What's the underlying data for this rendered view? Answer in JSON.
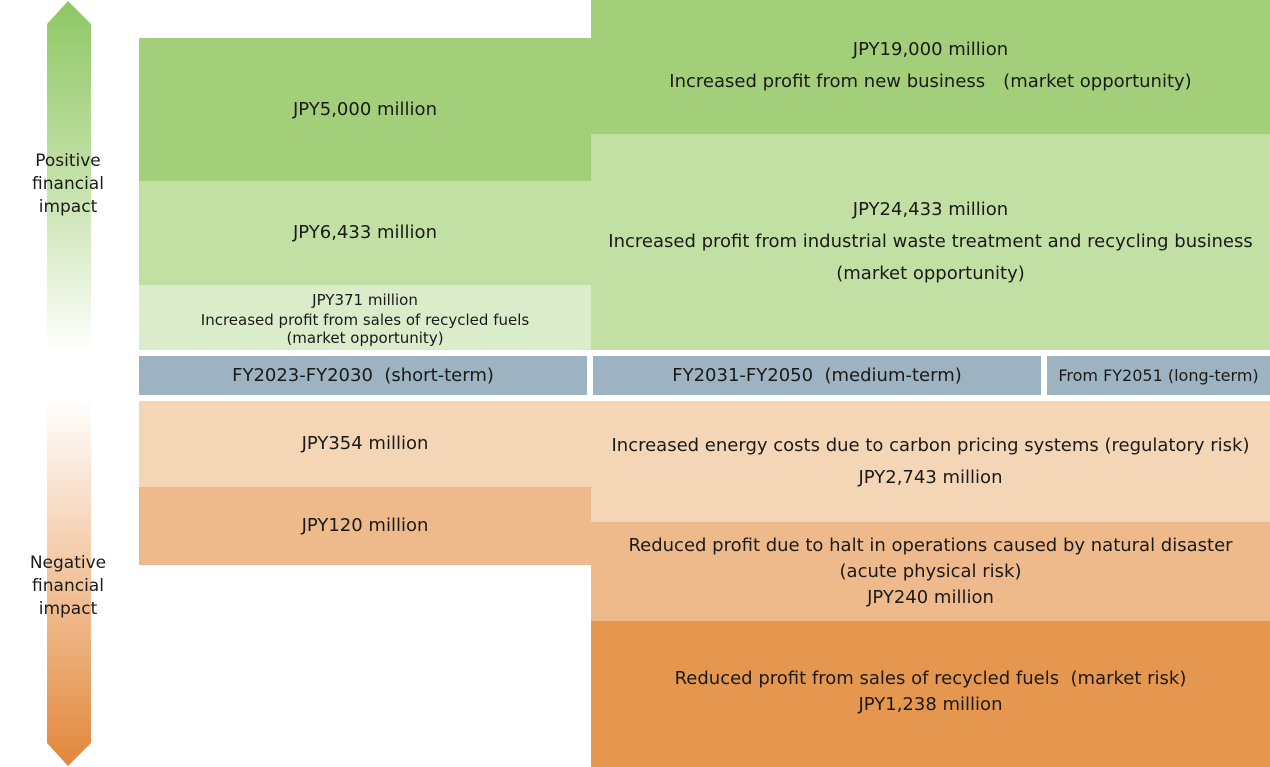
{
  "axis": {
    "positive_label_lines": [
      "Positive",
      "financial",
      "impact"
    ],
    "negative_label_lines": [
      "Negative",
      "financial",
      "impact"
    ]
  },
  "periods": {
    "short": "FY2023-FY2030  (short-term)",
    "medium": "FY2031-FY2050  (medium-term)",
    "long": "From FY2051 (long-term)"
  },
  "positive": {
    "short_new_business": {
      "amount": "JPY5,000 million"
    },
    "short_waste": {
      "amount": "JPY6,433 million"
    },
    "short_fuels": {
      "amount": "JPY371 million",
      "desc": "Increased profit from sales of recycled fuels",
      "tag": "(market opportunity)"
    },
    "medium_new_business": {
      "amount": "JPY19,000 million",
      "desc": "Increased profit from new business (market opportunity)"
    },
    "medium_waste": {
      "amount": "JPY24,433 million",
      "desc": "Increased profit from industrial waste treatment and recycling business",
      "tag": "(market opportunity)"
    }
  },
  "negative": {
    "short_energy": {
      "amount": "JPY354 million"
    },
    "short_disaster": {
      "amount": "JPY120 million"
    },
    "medium_energy": {
      "desc": "Increased energy costs due to carbon pricing systems (regulatory risk)",
      "amount": "JPY2,743 million"
    },
    "medium_disaster": {
      "desc": "Reduced profit due to halt in operations caused by natural disaster",
      "tag": "(acute physical risk)",
      "amount": "JPY240 million"
    },
    "medium_fuels": {
      "desc": "Reduced profit from sales of recycled fuels  (market risk)",
      "amount": "JPY1,238 million"
    }
  },
  "colors": {
    "green_dark": "#a3cf7a",
    "green_mid": "#c2e0a4",
    "green_light": "#dbecca",
    "period_bar": "#9eb3c2",
    "orange_light": "#f4d6b7",
    "orange_mid": "#efba8b",
    "orange_dark": "#e5964f"
  }
}
